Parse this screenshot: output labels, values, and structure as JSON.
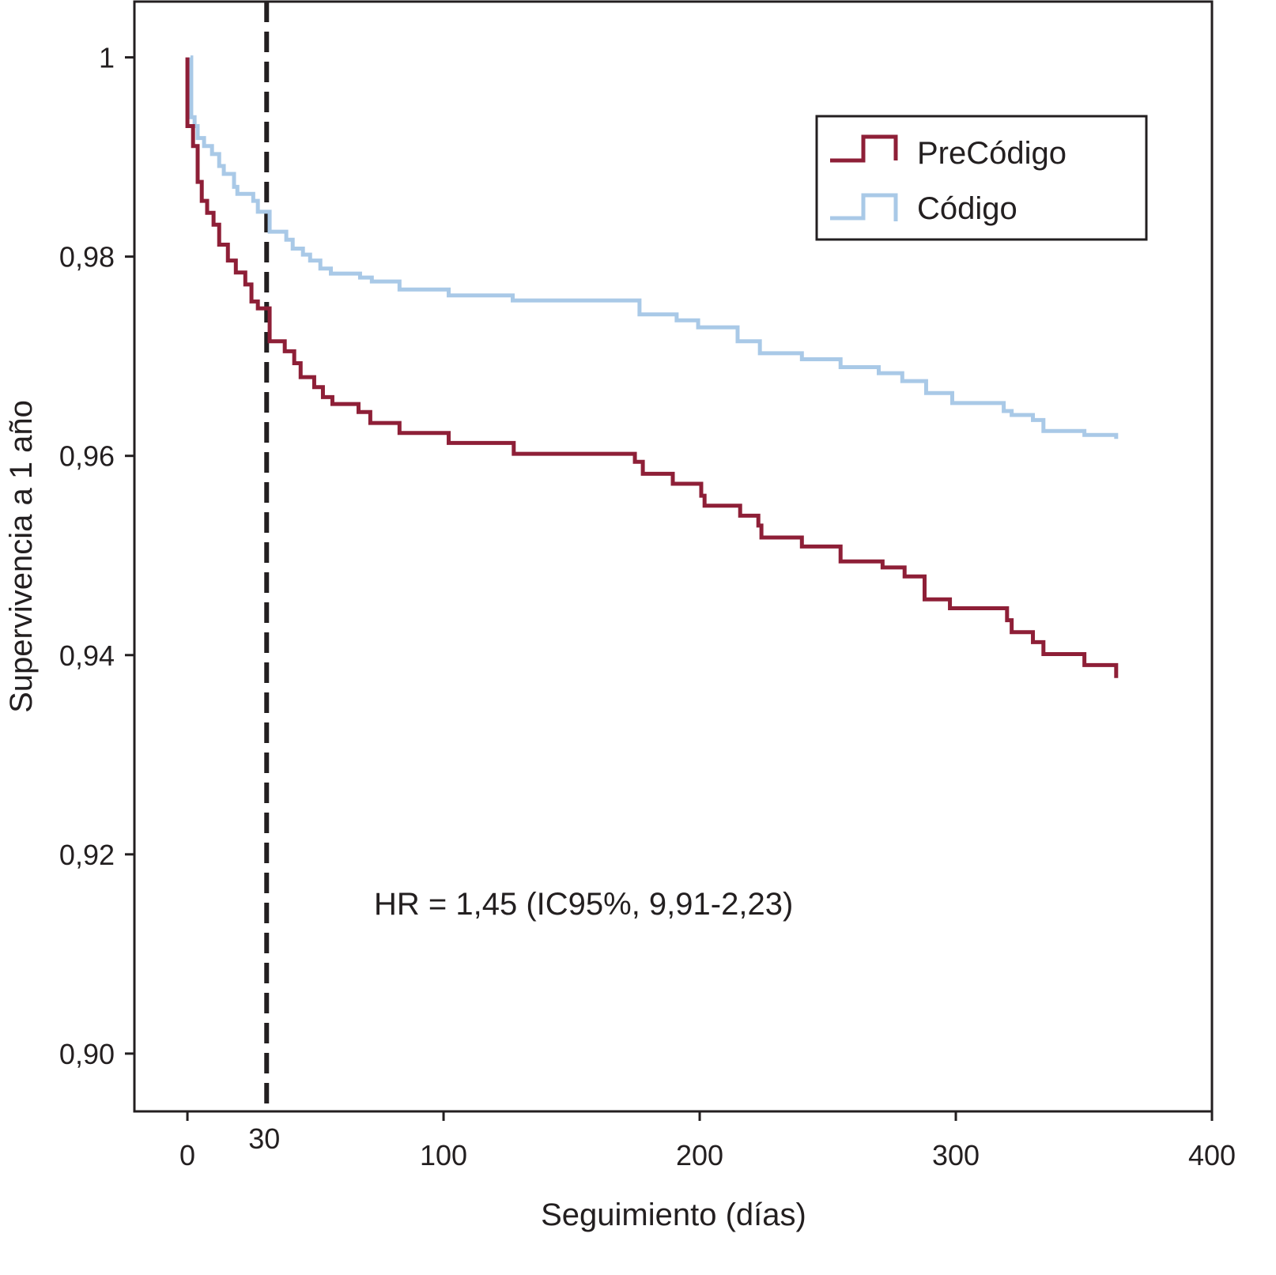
{
  "chart_data": {
    "type": "line",
    "title": "",
    "xlabel": "Seguimiento (días)",
    "ylabel": "Supervivencia a 1 año",
    "xlim": [
      -20.7,
      400
    ],
    "ylim": [
      0.8942,
      1.0056
    ],
    "xticks": [
      0,
      100,
      200,
      300,
      400
    ],
    "xtick_labels": [
      "0",
      "100",
      "200",
      "300",
      "400"
    ],
    "extra_xtick": {
      "value": 30,
      "label": "30"
    },
    "yticks": [
      1,
      0.98,
      0.96,
      0.94,
      0.92,
      0.9
    ],
    "ytick_labels": [
      "1",
      "0,98",
      "0,96",
      "0,94",
      "0,92",
      "0,90"
    ],
    "vline": {
      "x": 30,
      "style": "dashed"
    },
    "annotation": "HR = 1,45 (IC95%, 9,91-2,23)",
    "legend_position": "top-right",
    "series": [
      {
        "name": "PreCódigo",
        "color": "#8e1f37",
        "step": true,
        "points": [
          [
            0,
            1
          ],
          [
            0,
            0.9931
          ],
          [
            2.2,
            0.9911
          ],
          [
            4,
            0.9875
          ],
          [
            5.6,
            0.9856
          ],
          [
            7.7,
            0.9844
          ],
          [
            10.2,
            0.9832
          ],
          [
            12.4,
            0.9812
          ],
          [
            15.8,
            0.9796
          ],
          [
            18.9,
            0.9784
          ],
          [
            22.6,
            0.9772
          ],
          [
            25,
            0.9755
          ],
          [
            27.5,
            0.9748
          ],
          [
            32.1,
            0.9715
          ],
          [
            38,
            0.9705
          ],
          [
            41.7,
            0.9693
          ],
          [
            44.2,
            0.9679
          ],
          [
            49.5,
            0.9669
          ],
          [
            52.9,
            0.9659
          ],
          [
            56.6,
            0.9652
          ],
          [
            66.8,
            0.9644
          ],
          [
            71.4,
            0.9633
          ],
          [
            82.8,
            0.9623
          ],
          [
            102,
            0.9613
          ],
          [
            127.4,
            0.9602
          ],
          [
            174.7,
            0.9594
          ],
          [
            177.8,
            0.9582
          ],
          [
            189.5,
            0.9572
          ],
          [
            200.6,
            0.956
          ],
          [
            201.9,
            0.955
          ],
          [
            215.8,
            0.954
          ],
          [
            222.9,
            0.953
          ],
          [
            224.1,
            0.9518
          ],
          [
            239.9,
            0.9509
          ],
          [
            255,
            0.9494
          ],
          [
            271.4,
            0.9488
          ],
          [
            280,
            0.9479
          ],
          [
            287.8,
            0.9456
          ],
          [
            297.7,
            0.9447
          ],
          [
            320,
            0.9435
          ],
          [
            321.8,
            0.9423
          ],
          [
            330.1,
            0.9413
          ],
          [
            334.2,
            0.9401
          ],
          [
            350.2,
            0.939
          ],
          [
            362.6,
            0.9377
          ]
        ]
      },
      {
        "name": "Código",
        "color": "#a9c9e7",
        "step": true,
        "points": [
          [
            1.2,
            1
          ],
          [
            1.5,
            0.994
          ],
          [
            2.8,
            0.9931
          ],
          [
            4,
            0.9919
          ],
          [
            6.5,
            0.9911
          ],
          [
            9.6,
            0.9903
          ],
          [
            12.4,
            0.9891
          ],
          [
            14.2,
            0.9883
          ],
          [
            18.2,
            0.987
          ],
          [
            19.5,
            0.9863
          ],
          [
            25.7,
            0.9856
          ],
          [
            27.5,
            0.9845
          ],
          [
            32.1,
            0.9825
          ],
          [
            38.6,
            0.9817
          ],
          [
            41.1,
            0.9808
          ],
          [
            45.1,
            0.9802
          ],
          [
            47.9,
            0.9796
          ],
          [
            51.9,
            0.9788
          ],
          [
            56,
            0.9783
          ],
          [
            67.4,
            0.9779
          ],
          [
            72,
            0.9775
          ],
          [
            82.8,
            0.9767
          ],
          [
            102,
            0.9761
          ],
          [
            127,
            0.9756
          ],
          [
            176.5,
            0.9742
          ],
          [
            191,
            0.9736
          ],
          [
            199.4,
            0.9729
          ],
          [
            214.8,
            0.9715
          ],
          [
            223.5,
            0.9703
          ],
          [
            239.9,
            0.9697
          ],
          [
            255,
            0.9689
          ],
          [
            269.9,
            0.9683
          ],
          [
            279.1,
            0.9675
          ],
          [
            288.4,
            0.9663
          ],
          [
            298.6,
            0.9653
          ],
          [
            318.7,
            0.9645
          ],
          [
            321.8,
            0.9641
          ],
          [
            330.1,
            0.9636
          ],
          [
            334.2,
            0.9625
          ],
          [
            350.2,
            0.9621
          ],
          [
            362.6,
            0.9617
          ]
        ]
      }
    ]
  }
}
